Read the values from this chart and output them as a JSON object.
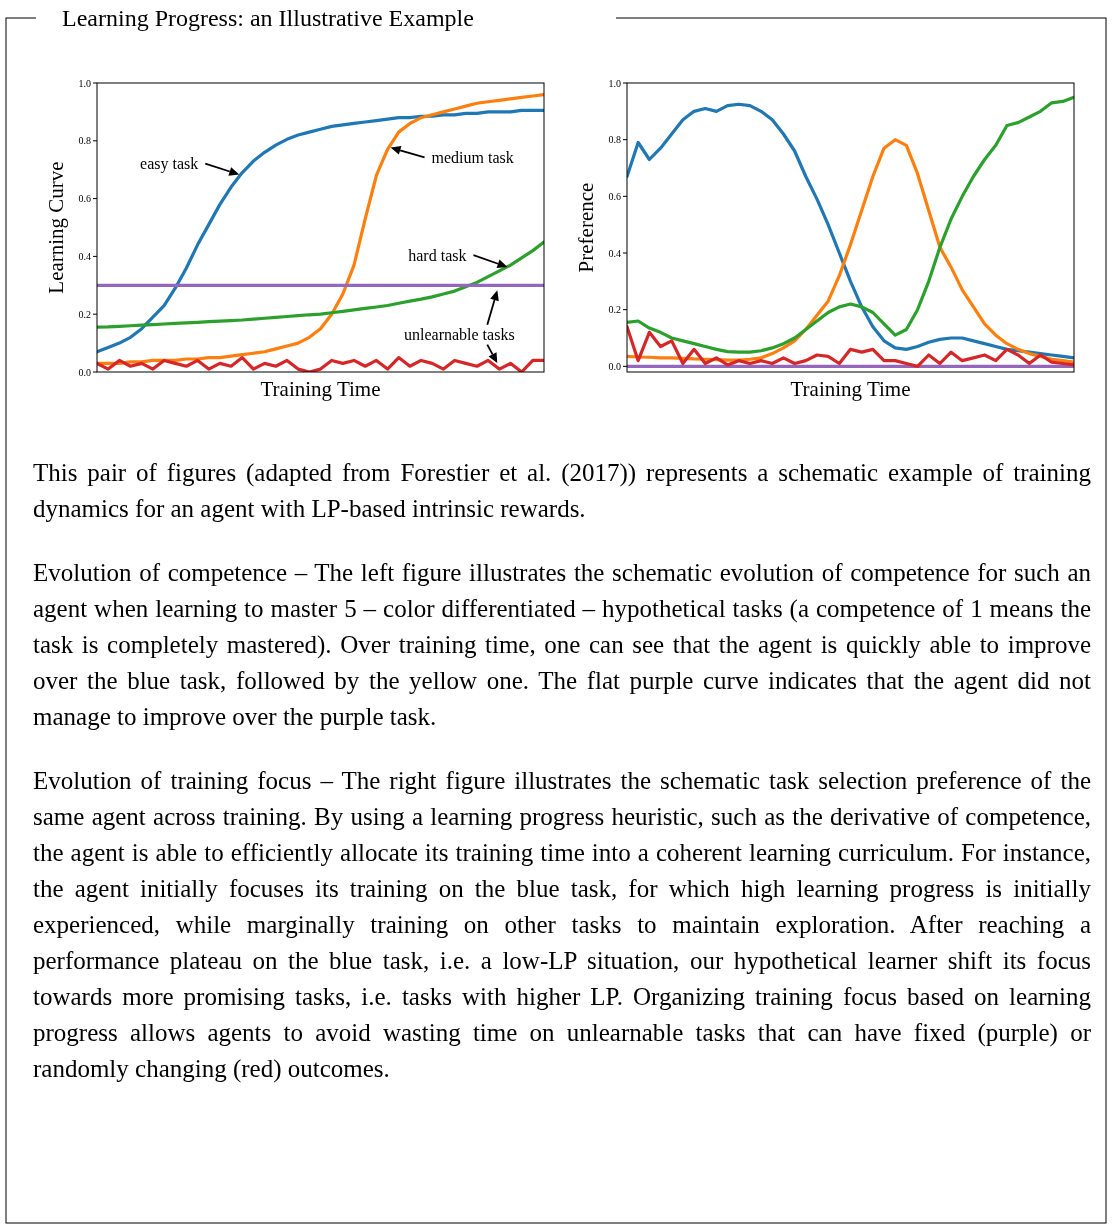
{
  "chart_data": [
    {
      "type": "line",
      "ylabel": "Learning Curve",
      "xlabel": "Training Time",
      "tick_labels": "y",
      "categories": [
        null,
        null,
        null,
        null,
        null,
        null,
        null,
        null,
        null,
        null,
        null,
        null,
        null,
        null,
        null,
        null,
        null,
        null,
        null,
        null,
        null,
        null,
        null,
        null,
        null,
        null,
        null,
        null,
        null,
        null,
        null,
        null,
        null,
        null,
        null,
        null,
        null,
        null,
        null,
        null,
        null
      ],
      "ylim": [
        0,
        1
      ],
      "yticks": [
        {
          "value": 0,
          "label": "0.0"
        },
        {
          "value": 0.2,
          "label": "0.2"
        },
        {
          "value": 0.4,
          "label": "0.4"
        },
        {
          "value": 0.6,
          "label": "0.6"
        },
        {
          "value": 0.8,
          "label": "0.8"
        },
        {
          "value": 1,
          "label": "1.0"
        }
      ],
      "series": [
        {
          "name": "easy task",
          "color": "#1f77b4",
          "values": [
            0.07,
            0.085,
            0.1,
            0.12,
            0.15,
            0.19,
            0.23,
            0.29,
            0.36,
            0.44,
            0.51,
            0.58,
            0.64,
            0.69,
            0.73,
            0.76,
            0.785,
            0.805,
            0.82,
            0.83,
            0.84,
            0.85,
            0.855,
            0.86,
            0.865,
            0.87,
            0.875,
            0.88,
            0.88,
            0.885,
            0.885,
            0.89,
            0.89,
            0.895,
            0.895,
            0.9,
            0.9,
            0.9,
            0.905,
            0.905,
            0.905
          ]
        },
        {
          "name": "medium task",
          "color": "#ff7f0e",
          "values": [
            0.03,
            0.03,
            0.03,
            0.035,
            0.035,
            0.04,
            0.04,
            0.04,
            0.045,
            0.045,
            0.05,
            0.05,
            0.055,
            0.06,
            0.065,
            0.07,
            0.08,
            0.09,
            0.1,
            0.12,
            0.15,
            0.2,
            0.27,
            0.37,
            0.53,
            0.68,
            0.77,
            0.83,
            0.86,
            0.88,
            0.89,
            0.9,
            0.91,
            0.92,
            0.93,
            0.935,
            0.94,
            0.945,
            0.95,
            0.955,
            0.96
          ]
        },
        {
          "name": "hard task",
          "color": "#2ca02c",
          "values": [
            0.155,
            0.156,
            0.158,
            0.16,
            0.162,
            0.164,
            0.166,
            0.168,
            0.17,
            0.172,
            0.174,
            0.176,
            0.178,
            0.18,
            0.183,
            0.186,
            0.189,
            0.192,
            0.195,
            0.198,
            0.2,
            0.205,
            0.21,
            0.215,
            0.22,
            0.225,
            0.23,
            0.238,
            0.245,
            0.252,
            0.26,
            0.27,
            0.28,
            0.295,
            0.31,
            0.33,
            0.35,
            0.37,
            0.395,
            0.42,
            0.45
          ]
        },
        {
          "color": "#9467bd",
          "values": [
            0.3,
            0.3,
            0.3,
            0.3,
            0.3,
            0.3,
            0.3,
            0.3,
            0.3,
            0.3,
            0.3,
            0.3,
            0.3,
            0.3,
            0.3,
            0.3,
            0.3,
            0.3,
            0.3,
            0.3,
            0.3,
            0.3,
            0.3,
            0.3,
            0.3,
            0.3,
            0.3,
            0.3,
            0.3,
            0.3,
            0.3,
            0.3,
            0.3,
            0.3,
            0.3,
            0.3,
            0.3,
            0.3,
            0.3,
            0.3,
            0.3
          ]
        },
        {
          "color": "#d62728",
          "values": [
            0.03,
            0.01,
            0.04,
            0.02,
            0.03,
            0.01,
            0.04,
            0.03,
            0.02,
            0.04,
            0.01,
            0.03,
            0.02,
            0.05,
            0.01,
            0.03,
            0.02,
            0.04,
            0.01,
            0.0,
            0.01,
            0.04,
            0.03,
            0.04,
            0.02,
            0.04,
            0.01,
            0.05,
            0.02,
            0.04,
            0.03,
            0.01,
            0.04,
            0.03,
            0.02,
            0.04,
            0.01,
            0.03,
            0.0,
            0.04,
            0.04
          ]
        }
      ],
      "annotations": [
        "unlearnable tasks"
      ]
    },
    {
      "type": "line",
      "ylabel": "Preference",
      "xlabel": "Training Time",
      "tick_labels": "y",
      "categories": [
        null,
        null,
        null,
        null,
        null,
        null,
        null,
        null,
        null,
        null,
        null,
        null,
        null,
        null,
        null,
        null,
        null,
        null,
        null,
        null,
        null,
        null,
        null,
        null,
        null,
        null,
        null,
        null,
        null,
        null,
        null,
        null,
        null,
        null,
        null,
        null,
        null,
        null,
        null,
        null,
        null
      ],
      "ylim": [
        -0.02,
        1
      ],
      "yticks": [
        {
          "value": 0,
          "label": "0.0"
        },
        {
          "value": 0.2,
          "label": "0.2"
        },
        {
          "value": 0.4,
          "label": "0.4"
        },
        {
          "value": 0.6,
          "label": "0.6"
        },
        {
          "value": 0.8,
          "label": "0.8"
        },
        {
          "value": 1,
          "label": "1.0"
        }
      ],
      "series": [
        {
          "color": "#1f77b4",
          "values": [
            0.67,
            0.79,
            0.73,
            0.77,
            0.82,
            0.87,
            0.9,
            0.91,
            0.9,
            0.92,
            0.925,
            0.92,
            0.9,
            0.87,
            0.82,
            0.76,
            0.67,
            0.59,
            0.5,
            0.4,
            0.3,
            0.21,
            0.14,
            0.09,
            0.065,
            0.06,
            0.07,
            0.085,
            0.095,
            0.1,
            0.1,
            0.09,
            0.08,
            0.07,
            0.06,
            0.055,
            0.05,
            0.045,
            0.04,
            0.035,
            0.03
          ]
        },
        {
          "color": "#ff7f0e",
          "values": [
            0.035,
            0.033,
            0.032,
            0.03,
            0.03,
            0.028,
            0.026,
            0.025,
            0.024,
            0.022,
            0.022,
            0.025,
            0.03,
            0.045,
            0.065,
            0.09,
            0.13,
            0.18,
            0.23,
            0.32,
            0.43,
            0.55,
            0.67,
            0.77,
            0.8,
            0.78,
            0.68,
            0.55,
            0.42,
            0.35,
            0.27,
            0.21,
            0.15,
            0.11,
            0.08,
            0.06,
            0.045,
            0.035,
            0.025,
            0.02,
            0.015
          ]
        },
        {
          "color": "#2ca02c",
          "values": [
            0.155,
            0.16,
            0.135,
            0.12,
            0.1,
            0.09,
            0.08,
            0.07,
            0.06,
            0.052,
            0.05,
            0.05,
            0.055,
            0.065,
            0.08,
            0.1,
            0.13,
            0.16,
            0.19,
            0.21,
            0.22,
            0.21,
            0.19,
            0.15,
            0.11,
            0.13,
            0.2,
            0.3,
            0.42,
            0.52,
            0.6,
            0.67,
            0.73,
            0.78,
            0.85,
            0.86,
            0.88,
            0.9,
            0.93,
            0.935,
            0.95
          ]
        },
        {
          "color": "#9467bd",
          "values": [
            0,
            0,
            0,
            0,
            0,
            0,
            0,
            0,
            0,
            0,
            0,
            0,
            0,
            0,
            0,
            0,
            0,
            0,
            0,
            0,
            0,
            0,
            0,
            0,
            0,
            0,
            0,
            0,
            0,
            0,
            0,
            0,
            0,
            0,
            0,
            0,
            0,
            0,
            0,
            0,
            0
          ]
        },
        {
          "color": "#d62728",
          "values": [
            0.14,
            0.02,
            0.12,
            0.07,
            0.09,
            0.01,
            0.06,
            0.01,
            0.03,
            0.005,
            0.02,
            0.01,
            0.02,
            0.01,
            0.03,
            0.01,
            0.02,
            0.04,
            0.035,
            0.01,
            0.06,
            0.05,
            0.06,
            0.02,
            0.02,
            0.01,
            0.0,
            0.04,
            0.01,
            0.05,
            0.02,
            0.03,
            0.04,
            0.02,
            0.06,
            0.04,
            0.01,
            0.04,
            0.015,
            0.01,
            0.005
          ]
        }
      ]
    },
    {
      "type": "other",
      "title": "Learning Progress: an Illustrative Example",
      "annotations": [
        "This pair of figures (adapted from Forestier et al. (2017)) represents a schematic example of training dynamics for an agent with LP-based intrinsic rewards.",
        "Evolution of competence –   The left figure illustrates the schematic evolution of competence for such an agent when learning to master 5 – color differentiated – hypothetical tasks (a competence of 1 means the task is completely mastered). Over training time, one can see that the agent is quickly able to improve over the blue task, followed by the yellow one. The flat purple curve indicates that the agent did not manage to improve over the purple task.",
        "Evolution of training focus –   The right figure illustrates the schematic task selection preference of the same agent across training. By using a learning progress heuristic, such as the derivative of competence, the agent is able to efficiently allocate its training time into a coherent learning curriculum. For instance, the agent initially focuses its training on the blue task, for which high learning progress is initially experienced, while marginally training on other tasks to maintain exploration. After reaching a performance plateau on the blue task, i.e.  a low-LP situation, our hypothetical learner shift its focus towards more promising tasks, i.e.  tasks with higher LP. Organizing training focus based on learning progress allows agents to avoid wasting time on unlearnable tasks that can have fixed (purple) or randomly changing (red) outcomes."
      ]
    }
  ]
}
